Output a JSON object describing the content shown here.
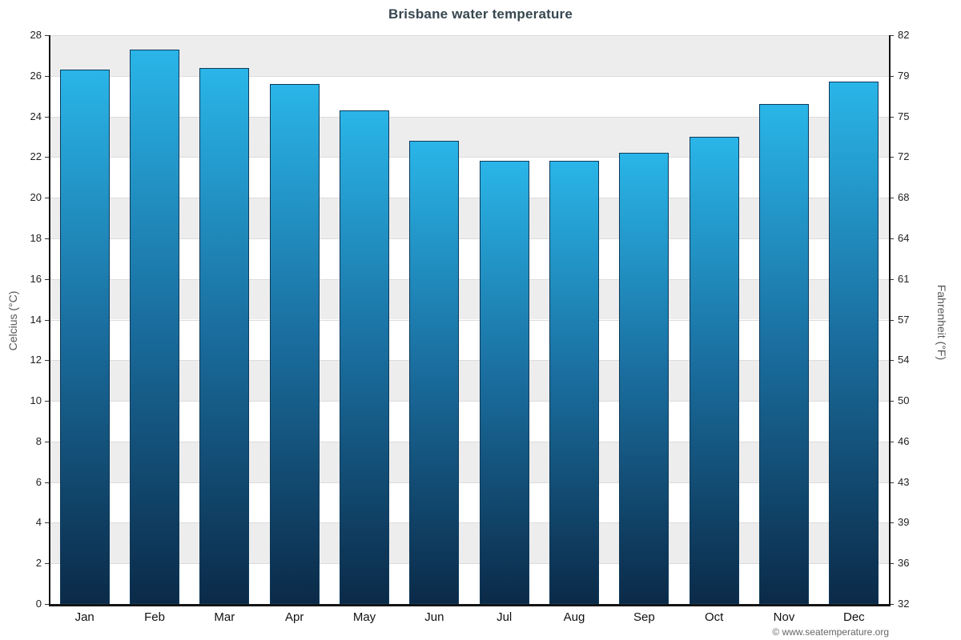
{
  "chart_data": {
    "type": "bar",
    "title": "Brisbane water temperature",
    "categories": [
      "Jan",
      "Feb",
      "Mar",
      "Apr",
      "May",
      "Jun",
      "Jul",
      "Aug",
      "Sep",
      "Oct",
      "Nov",
      "Dec"
    ],
    "values": [
      26.3,
      27.3,
      26.4,
      25.6,
      24.3,
      22.8,
      21.8,
      21.8,
      22.2,
      23.0,
      24.6,
      25.7
    ],
    "ylabel_left": "Celcius (°C)",
    "ylabel_right": "Fahrenheit (°F)",
    "ylim_celsius": [
      0,
      28
    ],
    "celsius_ticks": [
      0,
      2,
      4,
      6,
      8,
      10,
      12,
      14,
      16,
      18,
      20,
      22,
      24,
      26,
      28
    ],
    "fahrenheit_tick_labels": [
      "32",
      "36",
      "39",
      "43",
      "46",
      "50",
      "54",
      "57",
      "61",
      "64",
      "68",
      "72",
      "75",
      "79",
      "82"
    ],
    "grid": "striped-horizontal-bands",
    "legend": "none",
    "band_gray": "#ededed",
    "band_white": "#ffffff",
    "bar_gradient_top": "#2ab5e8",
    "bar_gradient_mid": "#1a6fa0",
    "bar_gradient_bottom": "#0b2a48",
    "bar_border": "#0d3a5c"
  },
  "footer": {
    "copyright": "© www.seatemperature.org"
  }
}
